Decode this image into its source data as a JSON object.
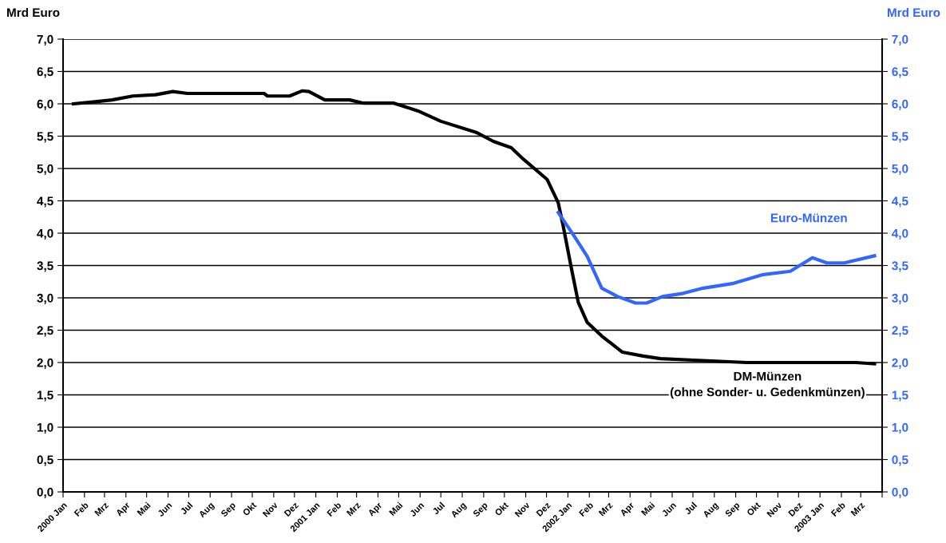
{
  "chart_data": {
    "type": "line",
    "ylabel": "Mrd Euro",
    "y2label": "Mrd Euro",
    "xlim": [
      "2000-01-01",
      "2003-04-01"
    ],
    "xticks": [
      {
        "value": "2000-01-01",
        "label": "2000 Jan"
      },
      {
        "value": "2000-02-01",
        "label": "Feb"
      },
      {
        "value": "2000-03-01",
        "label": "Mrz"
      },
      {
        "value": "2000-04-01",
        "label": "Apr"
      },
      {
        "value": "2000-05-01",
        "label": "Mai"
      },
      {
        "value": "2000-06-01",
        "label": "Jun"
      },
      {
        "value": "2000-07-01",
        "label": "Jul"
      },
      {
        "value": "2000-08-01",
        "label": "Aug"
      },
      {
        "value": "2000-09-01",
        "label": "Sep"
      },
      {
        "value": "2000-10-01",
        "label": "Okt"
      },
      {
        "value": "2000-11-01",
        "label": "Nov"
      },
      {
        "value": "2000-12-01",
        "label": "Dez"
      },
      {
        "value": "2001-01-01",
        "label": "2001 Jan"
      },
      {
        "value": "2001-02-01",
        "label": "Feb"
      },
      {
        "value": "2001-03-01",
        "label": "Mrz"
      },
      {
        "value": "2001-04-01",
        "label": "Apr"
      },
      {
        "value": "2001-05-01",
        "label": "Mai"
      },
      {
        "value": "2001-06-01",
        "label": "Jun"
      },
      {
        "value": "2001-07-01",
        "label": "Jul"
      },
      {
        "value": "2001-08-01",
        "label": "Aug"
      },
      {
        "value": "2001-09-01",
        "label": "Sep"
      },
      {
        "value": "2001-10-01",
        "label": "Okt"
      },
      {
        "value": "2001-11-01",
        "label": "Nov"
      },
      {
        "value": "2001-12-01",
        "label": "Dez"
      },
      {
        "value": "2002-01-01",
        "label": "2002 Jan"
      },
      {
        "value": "2002-02-01",
        "label": "Feb"
      },
      {
        "value": "2002-03-01",
        "label": "Mrz"
      },
      {
        "value": "2002-04-01",
        "label": "Apr"
      },
      {
        "value": "2002-05-01",
        "label": "Mai"
      },
      {
        "value": "2002-06-01",
        "label": "Jun"
      },
      {
        "value": "2002-07-01",
        "label": "Jul"
      },
      {
        "value": "2002-08-01",
        "label": "Aug"
      },
      {
        "value": "2002-09-01",
        "label": "Sep"
      },
      {
        "value": "2002-10-01",
        "label": "Okt"
      },
      {
        "value": "2002-11-01",
        "label": "Nov"
      },
      {
        "value": "2002-12-01",
        "label": "Dez"
      },
      {
        "value": "2003-01-01",
        "label": "2003 Jan"
      },
      {
        "value": "2003-02-01",
        "label": "Feb"
      },
      {
        "value": "2003-03-01",
        "label": "Mrz"
      },
      {
        "value": "2003-04-01",
        "label": null
      }
    ],
    "ylim": [
      0,
      7
    ],
    "y2lim": [
      0,
      7
    ],
    "yticks": [
      {
        "value": 0,
        "label": "0,0"
      },
      {
        "value": 0.5,
        "label": "0,5"
      },
      {
        "value": 1,
        "label": "1,0"
      },
      {
        "value": 1.5,
        "label": "1,5"
      },
      {
        "value": 2,
        "label": "2,0"
      },
      {
        "value": 2.5,
        "label": "2,5"
      },
      {
        "value": 3,
        "label": "3,0"
      },
      {
        "value": 3.5,
        "label": "3,5"
      },
      {
        "value": 4,
        "label": "4,0"
      },
      {
        "value": 4.5,
        "label": "4,5"
      },
      {
        "value": 5,
        "label": "5,0"
      },
      {
        "value": 5.5,
        "label": "5,5"
      },
      {
        "value": 6,
        "label": "6,0"
      },
      {
        "value": 6.5,
        "label": "6,5"
      },
      {
        "value": 7,
        "label": "7,0"
      }
    ],
    "y2ticks": [
      {
        "value": 0,
        "label": "0,0"
      },
      {
        "value": 0.5,
        "label": "0,5"
      },
      {
        "value": 1,
        "label": "1,0"
      },
      {
        "value": 1.5,
        "label": "1,5"
      },
      {
        "value": 2,
        "label": "2,0"
      },
      {
        "value": 2.5,
        "label": "2,5"
      },
      {
        "value": 3,
        "label": "3,0"
      },
      {
        "value": 3.5,
        "label": "3,5"
      },
      {
        "value": 4,
        "label": "4,0"
      },
      {
        "value": 4.5,
        "label": "4,5"
      },
      {
        "value": 5,
        "label": "5,0"
      },
      {
        "value": 5.5,
        "label": "5,5"
      },
      {
        "value": 6,
        "label": "6,0"
      },
      {
        "value": 6.5,
        "label": "6,5"
      },
      {
        "value": 7,
        "label": "7,0"
      }
    ],
    "grid": "y",
    "legend": false,
    "marker": "none",
    "line_style": "solid",
    "series": [
      {
        "name": "DM-Münzen\n(ohne Sonder- u. Gedenkmünzen)",
        "color": "#000000",
        "x": [
          "2000-01-16",
          "2000-02-14",
          "2000-03-12",
          "2000-04-11",
          "2000-05-14",
          "2000-06-08",
          "2000-06-29",
          "2000-10-18",
          "2000-10-23",
          "2000-11-24",
          "2000-12-12",
          "2000-12-22",
          "2001-01-14",
          "2001-02-19",
          "2001-03-11",
          "2001-04-24",
          "2001-05-29",
          "2001-07-01",
          "2001-08-21",
          "2001-09-15",
          "2001-10-11",
          "2001-10-29",
          "2001-12-02",
          "2001-12-18",
          "2001-12-25",
          "2002-01-06",
          "2002-01-16",
          "2002-01-29",
          "2002-02-19",
          "2002-03-21",
          "2002-04-20",
          "2002-05-15",
          "2002-06-26",
          "2002-09-17",
          "2003-02-22",
          "2003-03-21"
        ],
        "values": [
          6.0,
          6.03,
          6.06,
          6.12,
          6.14,
          6.19,
          6.16,
          6.16,
          6.12,
          6.12,
          6.2,
          6.19,
          6.06,
          6.06,
          6.01,
          6.01,
          5.89,
          5.73,
          5.56,
          5.42,
          5.32,
          5.14,
          4.83,
          4.47,
          4.12,
          3.46,
          2.93,
          2.62,
          2.41,
          2.16,
          2.1,
          2.06,
          2.04,
          2.0,
          2.0,
          1.98
        ]
      },
      {
        "name": "Euro-Münzen",
        "color": "#3366ff",
        "axis": "y2",
        "x": [
          "2001-12-18",
          "2002-01-08",
          "2002-01-29",
          "2002-02-19",
          "2002-03-14",
          "2002-04-09",
          "2002-04-25",
          "2002-05-18",
          "2002-06-17",
          "2002-07-16",
          "2002-08-27",
          "2002-10-11",
          "2002-11-19",
          "2002-12-21",
          "2003-01-11",
          "2003-02-05",
          "2003-03-21"
        ],
        "values": [
          4.32,
          3.99,
          3.64,
          3.15,
          3.02,
          2.92,
          2.92,
          3.02,
          3.07,
          3.15,
          3.22,
          3.36,
          3.41,
          3.62,
          3.54,
          3.54,
          3.65
        ]
      }
    ]
  }
}
